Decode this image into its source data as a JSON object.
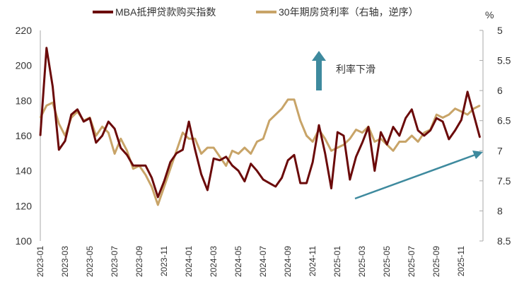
{
  "chart_data": {
    "type": "line",
    "legend_position": "top",
    "grid": false,
    "x_tick_labels": [
      "2023-01",
      "2023-03",
      "2023-05",
      "2023-07",
      "2023-09",
      "2023-11",
      "2024-01",
      "2024-03",
      "2024-05",
      "2024-07",
      "2024-09",
      "2024-11",
      "2025-01",
      "2025-03",
      "2025-05",
      "2025-07",
      "2025-09",
      "2025-11"
    ],
    "x_start": "2023-01",
    "x_step": "half-month",
    "y_left": {
      "ylim": [
        100,
        220
      ],
      "ticks": [
        "100",
        "120",
        "140",
        "160",
        "180",
        "200",
        "220"
      ]
    },
    "y_right": {
      "unit": "%",
      "ylim": [
        5,
        8.5
      ],
      "reversed": true,
      "ticks": [
        "5",
        "5.5",
        "6",
        "6.5",
        "7",
        "7.5",
        "8",
        "8.5"
      ]
    },
    "series": [
      {
        "name": "MBA抵押贷款购买指数",
        "axis": "left",
        "color": "#6B0A0A",
        "values": [
          160,
          210,
          188,
          152,
          157,
          172,
          175,
          168,
          170,
          156,
          160,
          168,
          164,
          153,
          149,
          143,
          143,
          143,
          136,
          125,
          134,
          145,
          150,
          152,
          168,
          152,
          138,
          129,
          147,
          146,
          148,
          143,
          140,
          134,
          144,
          140,
          135,
          133,
          131,
          136,
          146,
          149,
          133,
          133,
          145,
          166,
          150,
          130,
          162,
          160,
          135,
          148,
          156,
          165,
          140,
          162,
          155,
          165,
          160,
          170,
          175,
          163,
          160,
          163,
          170,
          168,
          158,
          163,
          169,
          185,
          172,
          159
        ]
      },
      {
        "name": "30年期房贷利率（右轴，逆序）",
        "axis": "right",
        "color": "#C8A468",
        "values": [
          6.45,
          6.25,
          6.2,
          6.55,
          6.75,
          6.45,
          6.35,
          6.5,
          6.45,
          6.75,
          6.6,
          6.7,
          7.05,
          6.8,
          7.0,
          7.3,
          7.25,
          7.4,
          7.6,
          7.9,
          7.6,
          7.3,
          7.0,
          6.7,
          6.8,
          6.8,
          7.05,
          6.95,
          6.95,
          7.1,
          7.25,
          7.0,
          7.05,
          6.95,
          7.05,
          6.85,
          6.8,
          6.5,
          6.4,
          6.3,
          6.15,
          6.15,
          6.5,
          6.75,
          6.85,
          6.65,
          6.8,
          7.0,
          6.95,
          6.9,
          6.8,
          6.65,
          6.7,
          6.6,
          6.85,
          6.8,
          6.9,
          7.0,
          6.85,
          6.85,
          6.75,
          6.85,
          6.7,
          6.65,
          6.4,
          6.45,
          6.4,
          6.3,
          6.35,
          6.4,
          6.3,
          6.25
        ]
      }
    ],
    "annotations": [
      {
        "text": "利率下滑",
        "arrow": "up"
      },
      {
        "text": "",
        "arrow": "diagonal-up-right"
      }
    ],
    "arrow_color": "#3E8A9E"
  }
}
